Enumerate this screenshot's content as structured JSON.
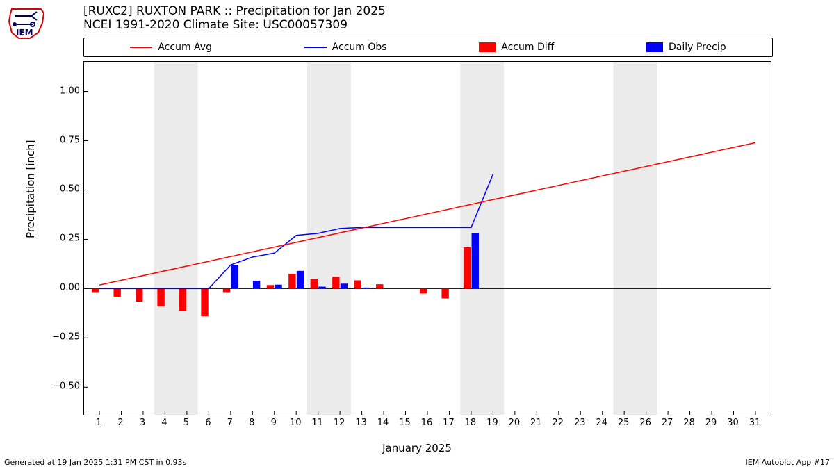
{
  "title_main": "[RUXC2] RUXTON PARK :: Precipitation for Jan 2025",
  "title_sub": "NCEI 1991-2020 Climate Site: USC00057309",
  "ylabel": "Precipitation [inch]",
  "xlabel": "January 2025",
  "footer_left": "Generated at 19 Jan 2025 1:31 PM CST in 0.93s",
  "footer_right": "IEM Autoplot App #17",
  "legend": {
    "items": [
      {
        "label": "Accum Avg",
        "kind": "line",
        "color": "#ff0000"
      },
      {
        "label": "Accum Obs",
        "kind": "line",
        "color": "#0000ff"
      },
      {
        "label": "Accum Diff",
        "kind": "rect",
        "color": "#ff0000"
      },
      {
        "label": "Daily Precip",
        "kind": "rect",
        "color": "#0000ff"
      }
    ]
  },
  "chart": {
    "x_min": 0.3,
    "x_max": 31.7,
    "y_min": -0.64,
    "y_max": 1.15,
    "yticks": [
      -0.5,
      -0.25,
      0.0,
      0.25,
      0.5,
      0.75,
      1.0
    ],
    "ytick_labels": [
      "−0.50",
      "−0.25",
      "0.00",
      "0.25",
      "0.50",
      "0.75",
      "1.00"
    ],
    "xticks": [
      1,
      2,
      3,
      4,
      5,
      6,
      7,
      8,
      9,
      10,
      11,
      12,
      13,
      14,
      15,
      16,
      17,
      18,
      19,
      20,
      21,
      22,
      23,
      24,
      25,
      26,
      27,
      28,
      29,
      30,
      31
    ],
    "xtick_labels": [
      "1",
      "2",
      "3",
      "4",
      "5",
      "6",
      "7",
      "8",
      "9",
      "10",
      "11",
      "12",
      "13",
      "14",
      "15",
      "16",
      "17",
      "18",
      "19",
      "20",
      "21",
      "22",
      "23",
      "24",
      "25",
      "26",
      "27",
      "28",
      "29",
      "30",
      "31"
    ],
    "shade_color": "#ebebeb",
    "shade_ranges": [
      [
        3.5,
        5.5
      ],
      [
        10.5,
        12.5
      ],
      [
        17.5,
        19.5
      ],
      [
        24.5,
        26.5
      ]
    ],
    "accum_avg": {
      "x": [
        1,
        31
      ],
      "y": [
        0.018,
        0.74
      ],
      "color": "#ff0000",
      "width": 1.5
    },
    "accum_obs": {
      "x": [
        1,
        2,
        3,
        4,
        5,
        6,
        7,
        8,
        9,
        10,
        11,
        12,
        13,
        14,
        15,
        16,
        17,
        18,
        19
      ],
      "y": [
        0,
        0,
        0,
        0,
        0,
        0,
        0.12,
        0.16,
        0.18,
        0.27,
        0.28,
        0.305,
        0.31,
        0.31,
        0.31,
        0.31,
        0.31,
        0.31,
        0.58
      ],
      "color": "#0000ff",
      "width": 1.5
    },
    "accum_diff_color": "#ff0000",
    "daily_precip_color": "#0000ff",
    "bar_half_width": 0.35,
    "bar_gap": 0.02,
    "bars": [
      {
        "x": 1,
        "diff": -0.018,
        "daily": 0
      },
      {
        "x": 2,
        "diff": -0.042,
        "daily": 0
      },
      {
        "x": 3,
        "diff": -0.066,
        "daily": 0
      },
      {
        "x": 4,
        "diff": -0.09,
        "daily": 0
      },
      {
        "x": 5,
        "diff": -0.114,
        "daily": 0
      },
      {
        "x": 6,
        "diff": -0.14,
        "daily": 0
      },
      {
        "x": 7,
        "diff": -0.018,
        "daily": 0.12
      },
      {
        "x": 8,
        "diff": 0.0,
        "daily": 0.04
      },
      {
        "x": 9,
        "diff": 0.018,
        "daily": 0.02
      },
      {
        "x": 10,
        "diff": 0.075,
        "daily": 0.09
      },
      {
        "x": 11,
        "diff": 0.05,
        "daily": 0.01
      },
      {
        "x": 12,
        "diff": 0.06,
        "daily": 0.025
      },
      {
        "x": 13,
        "diff": 0.042,
        "daily": 0.005
      },
      {
        "x": 14,
        "diff": 0.022,
        "daily": 0
      },
      {
        "x": 15,
        "diff": 0.0,
        "daily": 0
      },
      {
        "x": 16,
        "diff": -0.025,
        "daily": 0
      },
      {
        "x": 17,
        "diff": -0.05,
        "daily": 0
      },
      {
        "x": 18,
        "diff": 0.21,
        "daily": 0.28
      }
    ]
  }
}
